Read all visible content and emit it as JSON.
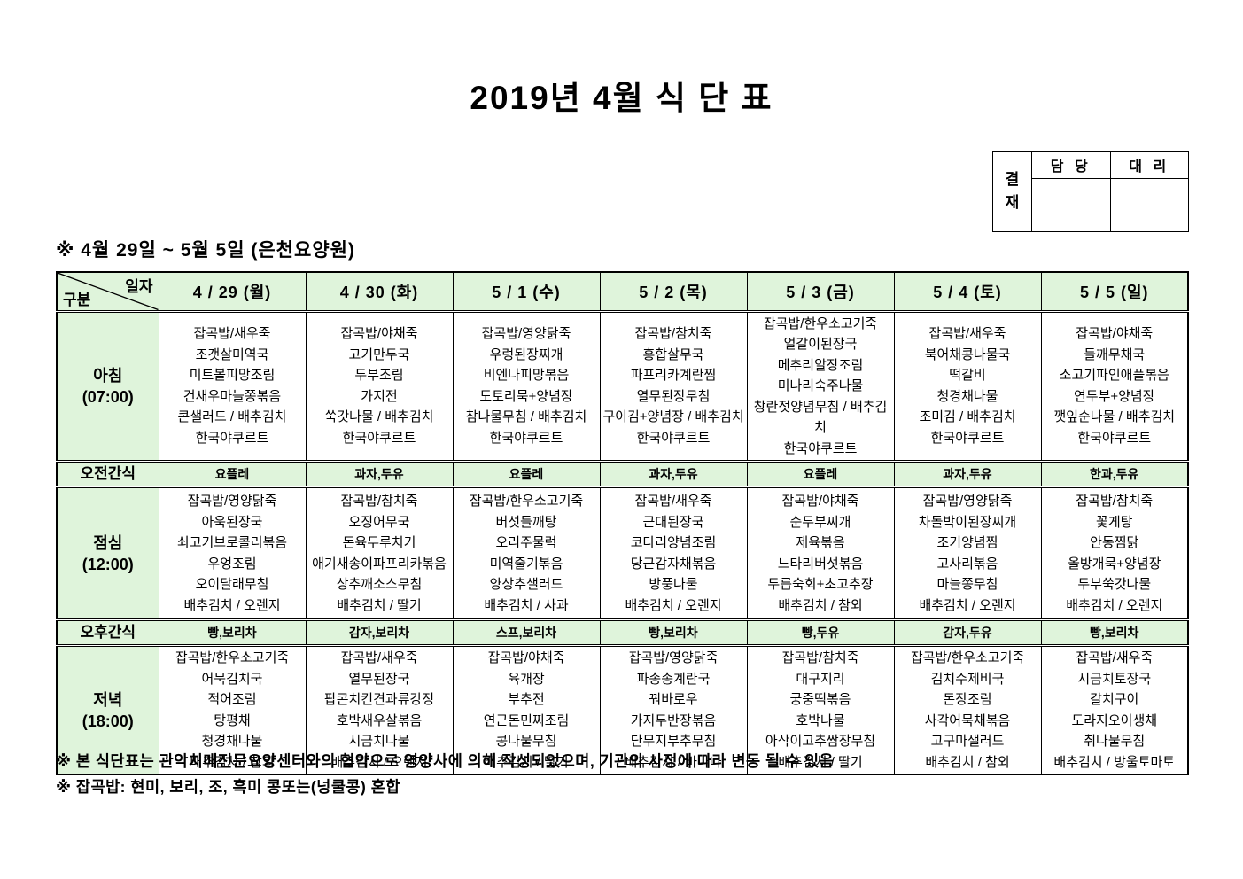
{
  "title": "2019년 4월 식 단 표",
  "approval": {
    "stamp_label": "결\n재",
    "columns": [
      "담 당",
      "대 리"
    ]
  },
  "subtitle": "※  4월  29일  ~  5월  5일  (은천요양원)",
  "menu_table": {
    "corner": {
      "top_right": "일자",
      "bottom_left": "구분"
    },
    "day_headers": [
      "4 / 29 (월)",
      "4 / 30 (화)",
      "5 / 1 (수)",
      "5 / 2 (목)",
      "5 / 3 (금)",
      "5 / 4 (토)",
      "5 / 5 (일)"
    ],
    "rows": [
      {
        "type": "meal",
        "label": "아침",
        "time": "(07:00)",
        "cells": [
          [
            "잡곡밥/새우죽",
            "조갯살미역국",
            "미트볼피망조림",
            "건새우마늘쫑볶음",
            "콘샐러드 / 배추김치",
            "한국야쿠르트"
          ],
          [
            "잡곡밥/야채죽",
            "고기만두국",
            "두부조림",
            "가지전",
            "쑥갓나물 / 배추김치",
            "한국야쿠르트"
          ],
          [
            "잡곡밥/영양닭죽",
            "우렁된장찌개",
            "비엔나피망볶음",
            "도토리묵+양념장",
            "참나물무침 / 배추김치",
            "한국야쿠르트"
          ],
          [
            "잡곡밥/참치죽",
            "홍합살무국",
            "파프리카계란찜",
            "열무된장무침",
            "구이김+양념장 / 배추김치",
            "한국야쿠르트"
          ],
          [
            "잡곡밥/한우소고기죽",
            "얼갈이된장국",
            "메추리알장조림",
            "미나리숙주나물",
            "창란젓양념무침 / 배추김치",
            "한국야쿠르트"
          ],
          [
            "잡곡밥/새우죽",
            "북어채콩나물국",
            "떡갈비",
            "청경채나물",
            "조미김 / 배추김치",
            "한국야쿠르트"
          ],
          [
            "잡곡밥/야채죽",
            "들깨무채국",
            "소고기파인애플볶음",
            "연두부+양념장",
            "깻잎순나물 / 배추김치",
            "한국야쿠르트"
          ]
        ]
      },
      {
        "type": "snack",
        "label": "오전간식",
        "cells": [
          "요플레",
          "과자,두유",
          "요플레",
          "과자,두유",
          "요플레",
          "과자,두유",
          "한과,두유"
        ]
      },
      {
        "type": "meal",
        "label": "점심",
        "time": "(12:00)",
        "cells": [
          [
            "잡곡밥/영양닭죽",
            "아욱된장국",
            "쇠고기브로콜리볶음",
            "우엉조림",
            "오이달래무침",
            "배추김치 / 오렌지"
          ],
          [
            "잡곡밥/참치죽",
            "오징어무국",
            "돈육두루치기",
            "애기새송이파프리카볶음",
            "상추깨소스무침",
            "배추김치 / 딸기"
          ],
          [
            "잡곡밥/한우소고기죽",
            "버섯들깨탕",
            "오리주물럭",
            "미역줄기볶음",
            "양상추샐러드",
            "배추김치 / 사과"
          ],
          [
            "잡곡밥/새우죽",
            "근대된장국",
            "코다리양념조림",
            "당근감자채볶음",
            "방풍나물",
            "배추김치 / 오렌지"
          ],
          [
            "잡곡밥/야채죽",
            "순두부찌개",
            "제육볶음",
            "느타리버섯볶음",
            "두릅숙회+초고추장",
            "배추김치 / 참외"
          ],
          [
            "잡곡밥/영양닭죽",
            "차돌박이된장찌개",
            "조기양념찜",
            "고사리볶음",
            "마늘쫑무침",
            "배추김치 / 오렌지"
          ],
          [
            "잡곡밥/참치죽",
            "꽃게탕",
            "안동찜닭",
            "올방개묵+양념장",
            "두부쑥갓나물",
            "배추김치 / 오렌지"
          ]
        ]
      },
      {
        "type": "snack",
        "label": "오후간식",
        "cells": [
          "빵,보리차",
          "감자,보리차",
          "스프,보리차",
          "빵,보리차",
          "빵,두유",
          "감자,두유",
          "빵,보리차"
        ]
      },
      {
        "type": "meal",
        "label": "저녁",
        "time": "(18:00)",
        "cells": [
          [
            "잡곡밥/한우소고기죽",
            "어묵김치국",
            "적어조림",
            "탕평채",
            "청경채나물",
            "배추김치 / 참외"
          ],
          [
            "잡곡밥/새우죽",
            "열무된장국",
            "팝콘치킨견과류강정",
            "호박새우살볶음",
            "시금치나물",
            "배추김치 / 오렌지"
          ],
          [
            "잡곡밥/야채죽",
            "육개장",
            "부추전",
            "연근돈민찌조림",
            "콩나물무침",
            "배추김치 / 딸기"
          ],
          [
            "잡곡밥/영양닭죽",
            "파송송계란국",
            "꿔바로우",
            "가지두반장볶음",
            "단무지부추무침",
            "배추김치 / 바나나"
          ],
          [
            "잡곡밥/참치죽",
            "대구지리",
            "궁중떡볶음",
            "호박나물",
            "아삭이고추쌈장무침",
            "배추김치 / 딸기"
          ],
          [
            "잡곡밥/한우소고기죽",
            "김치수제비국",
            "돈장조림",
            "사각어묵채볶음",
            "고구마샐러드",
            "배추김치 / 참외"
          ],
          [
            "잡곡밥/새우죽",
            "시금치토장국",
            "갈치구이",
            "도라지오이생채",
            "취나물무침",
            "배추김치 / 방울토마토"
          ]
        ]
      }
    ]
  },
  "footnotes": [
    "※  본  식단표는  관악치매전문요양센터와의  협약으로  영양사에  의해  작성되었으며,  기관의  사정에  따라  변동  될  수  있음",
    "※  잡곡밥:  현미,  보리,  조,  흑미  콩또는(넝쿨콩)  혼합"
  ],
  "colors": {
    "cell_green": "#DFF4DB",
    "border": "#000000",
    "text": "#000000"
  }
}
